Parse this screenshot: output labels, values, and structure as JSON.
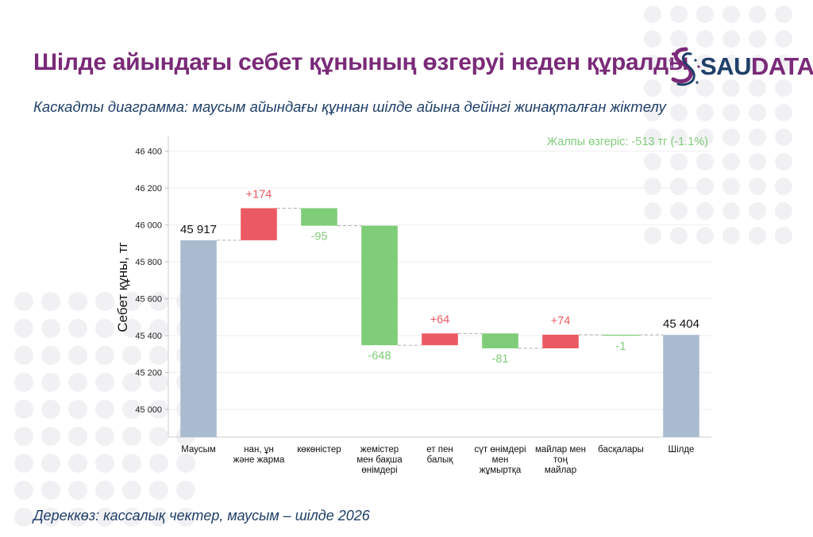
{
  "title": "Шілде айындағы себет құнының өзгеруі неден құралды",
  "subtitle": "Каскадты диаграмма: маусым айындағы құннан шілде айына дейінгі жинақталған жіктелу",
  "source": "Дереккөз: кассалық чектер, маусым – шілде 2026",
  "logo": {
    "part1": "SAU",
    "part2": "DATA",
    "icon": "saudata-logo-icon"
  },
  "colors": {
    "title": "#7a2a78",
    "text": "#1f3f68",
    "total": "#a9bccf",
    "increase": "#eb5a62",
    "decrease": "#7fcc79",
    "dots": "#f1f1f4"
  },
  "chart_data": {
    "type": "waterfall",
    "ylabel": "Себет құны, тг",
    "ylim": [
      44850,
      46480
    ],
    "yticks": [
      45000,
      45200,
      45400,
      45600,
      45800,
      46000,
      46200,
      46400
    ],
    "ytick_labels": [
      "45 000",
      "45 200",
      "45 400",
      "45 600",
      "45 800",
      "46 000",
      "46 200",
      "46 400"
    ],
    "grid": true,
    "annotation": "Жалпы өзгеріс: -513 тг (-1.1%)",
    "categories": [
      [
        "Маусым"
      ],
      [
        "нан, ұн",
        "және жарма"
      ],
      [
        "көкөністер"
      ],
      [
        "жемістер",
        "мен бақша",
        "өнімдері"
      ],
      [
        "ет пен",
        "балық"
      ],
      [
        "сүт өнімдері",
        "мен",
        "жұмыртқа"
      ],
      [
        "майлар мен",
        "тоң",
        "майлар"
      ],
      [
        "басқалары"
      ],
      [
        "Шілде"
      ]
    ],
    "steps": [
      {
        "kind": "total",
        "value": 45917,
        "label": "45 917"
      },
      {
        "kind": "delta",
        "value": 174,
        "label": "+174"
      },
      {
        "kind": "delta",
        "value": -95,
        "label": "-95"
      },
      {
        "kind": "delta",
        "value": -648,
        "label": "-648"
      },
      {
        "kind": "delta",
        "value": 64,
        "label": "+64"
      },
      {
        "kind": "delta",
        "value": -81,
        "label": "-81"
      },
      {
        "kind": "delta",
        "value": 74,
        "label": "+74"
      },
      {
        "kind": "delta",
        "value": -1,
        "label": "-1"
      },
      {
        "kind": "total",
        "value": 45404,
        "label": "45 404"
      }
    ]
  }
}
